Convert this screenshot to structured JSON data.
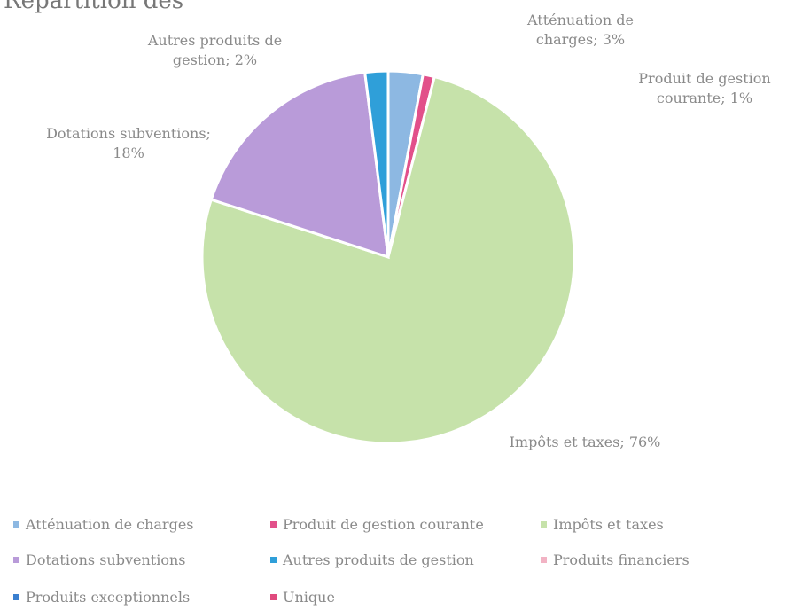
{
  "chart_data": {
    "type": "pie",
    "title": "Répartition des",
    "categories": [
      "Atténuation de charges",
      "Produit de gestion courante",
      "Impôts et taxes",
      "Dotations subventions",
      "Autres produits de gestion",
      "Produits financiers",
      "Produits exceptionnels",
      "Unique"
    ],
    "values": [
      3,
      1,
      76,
      18,
      2,
      0,
      0,
      0
    ],
    "value_labels": [
      "Atténuation de charges; 3%",
      "Produit de gestion courante; 1%",
      "Impôts et taxes; 76%",
      "Dotations subventions; 18%",
      "Autres produits de gestion; 2%",
      null,
      null,
      null
    ],
    "colors": [
      "#8db8e2",
      "#e2508a",
      "#c6e2aa",
      "#b99bd9",
      "#2f9fd9",
      "#f2b3c4",
      "#3a7fcf",
      "#e04a7e"
    ],
    "legend": "bottom"
  }
}
